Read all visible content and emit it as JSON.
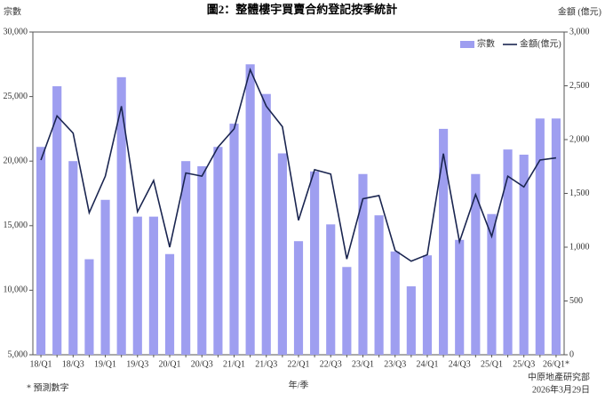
{
  "chart_data": {
    "type": "bar-line",
    "title": "圖2：整體樓宇買賣合約登記按季統計",
    "y_label": "宗數",
    "y2_label": "金額 (億元)",
    "x_label": "年/季",
    "footnote": "* 預測數字",
    "source": "中原地產研究部",
    "date": "2026年3月29日",
    "categories": [
      "18/Q1",
      null,
      "18/Q3",
      null,
      "19/Q1",
      null,
      "19/Q3",
      null,
      "20/Q1",
      null,
      "20/Q3",
      null,
      "21/Q1",
      null,
      "21/Q3",
      null,
      "22/Q1",
      null,
      "22/Q3",
      null,
      "23/Q1",
      null,
      "23/Q3",
      null,
      "24/Q1",
      null,
      "24/Q3",
      null,
      "25/Q1",
      null,
      "25/Q3",
      null,
      "26/Q1*"
    ],
    "series": [
      {
        "name": "宗數",
        "color": "#9e9ef0",
        "type": "bar",
        "values": [
          21100,
          25800,
          20000,
          12400,
          17000,
          26500,
          15700,
          15700,
          12800,
          20000,
          19600,
          21100,
          22900,
          27500,
          25200,
          20600,
          13800,
          19200,
          15100,
          11800,
          19000,
          15800,
          13000,
          10300,
          12700,
          22500,
          13900,
          19000,
          15900,
          20900,
          20500,
          23300,
          23300
        ]
      },
      {
        "name": "金額(億元)",
        "color": "#1a2550",
        "type": "line",
        "axis": "y2",
        "values": [
          1810,
          2220,
          2060,
          1320,
          1660,
          2310,
          1330,
          1620,
          1000,
          1690,
          1660,
          1930,
          2100,
          2650,
          2310,
          2120,
          1250,
          1720,
          1680,
          890,
          1450,
          1480,
          970,
          870,
          930,
          1870,
          1050,
          1490,
          1100,
          1660,
          1560,
          1810,
          1830
        ]
      }
    ],
    "ylim": [
      5000,
      30000
    ],
    "yticks": [
      {
        "value": 5000,
        "label": "5,000"
      },
      {
        "value": 10000,
        "label": "10,000"
      },
      {
        "value": 15000,
        "label": "15,000"
      },
      {
        "value": 20000,
        "label": "20,000"
      },
      {
        "value": 25000,
        "label": "25,000"
      },
      {
        "value": 30000,
        "label": "30,000"
      }
    ],
    "y2lim": [
      0,
      3000
    ],
    "y2ticks": [
      0,
      500,
      {
        "value": 1000,
        "label": "1,000"
      },
      {
        "value": 1500,
        "label": "1,500"
      },
      {
        "value": 2000,
        "label": "2,000"
      },
      {
        "value": 2500,
        "label": "2,500"
      },
      {
        "value": 3000,
        "label": "3,000"
      }
    ],
    "legend": "upper right"
  }
}
